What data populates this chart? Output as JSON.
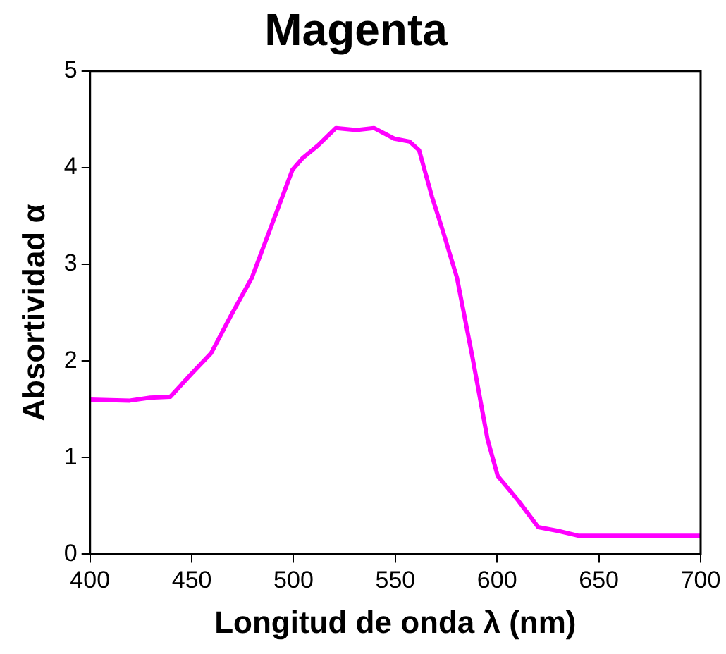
{
  "chart_data": {
    "type": "line",
    "title": "Magenta",
    "xlabel": "Longitud de onda λ (nm)",
    "ylabel": "Absortividad α",
    "xlim": [
      400,
      700
    ],
    "xticks": [
      400,
      450,
      500,
      550,
      600,
      650,
      700
    ],
    "ylim": [
      0,
      5
    ],
    "yticks": [
      0,
      1,
      2,
      3,
      4,
      5
    ],
    "grid": false,
    "legend": false,
    "marker": "none",
    "line_style": "solid",
    "series": [
      {
        "color": "#ff00ff",
        "x": [
          400,
          419.5,
          429.5,
          439.5,
          449.5,
          459.5,
          469.5,
          479.5,
          489.5,
          499.5,
          504.5,
          512,
          520.8,
          530.8,
          539.5,
          549.5,
          557,
          561.7,
          568,
          573,
          580.3,
          587.8,
          595.3,
          600.3,
          610.2,
          620.2,
          630.2,
          640.2,
          700
        ],
        "values": [
          1.6,
          1.59,
          1.62,
          1.63,
          1.86,
          2.08,
          2.48,
          2.86,
          3.42,
          3.98,
          4.1,
          4.23,
          4.41,
          4.39,
          4.41,
          4.3,
          4.27,
          4.18,
          3.7,
          3.37,
          2.86,
          2.05,
          1.19,
          0.81,
          0.56,
          0.28,
          0.24,
          0.19,
          0.19
        ]
      }
    ]
  }
}
